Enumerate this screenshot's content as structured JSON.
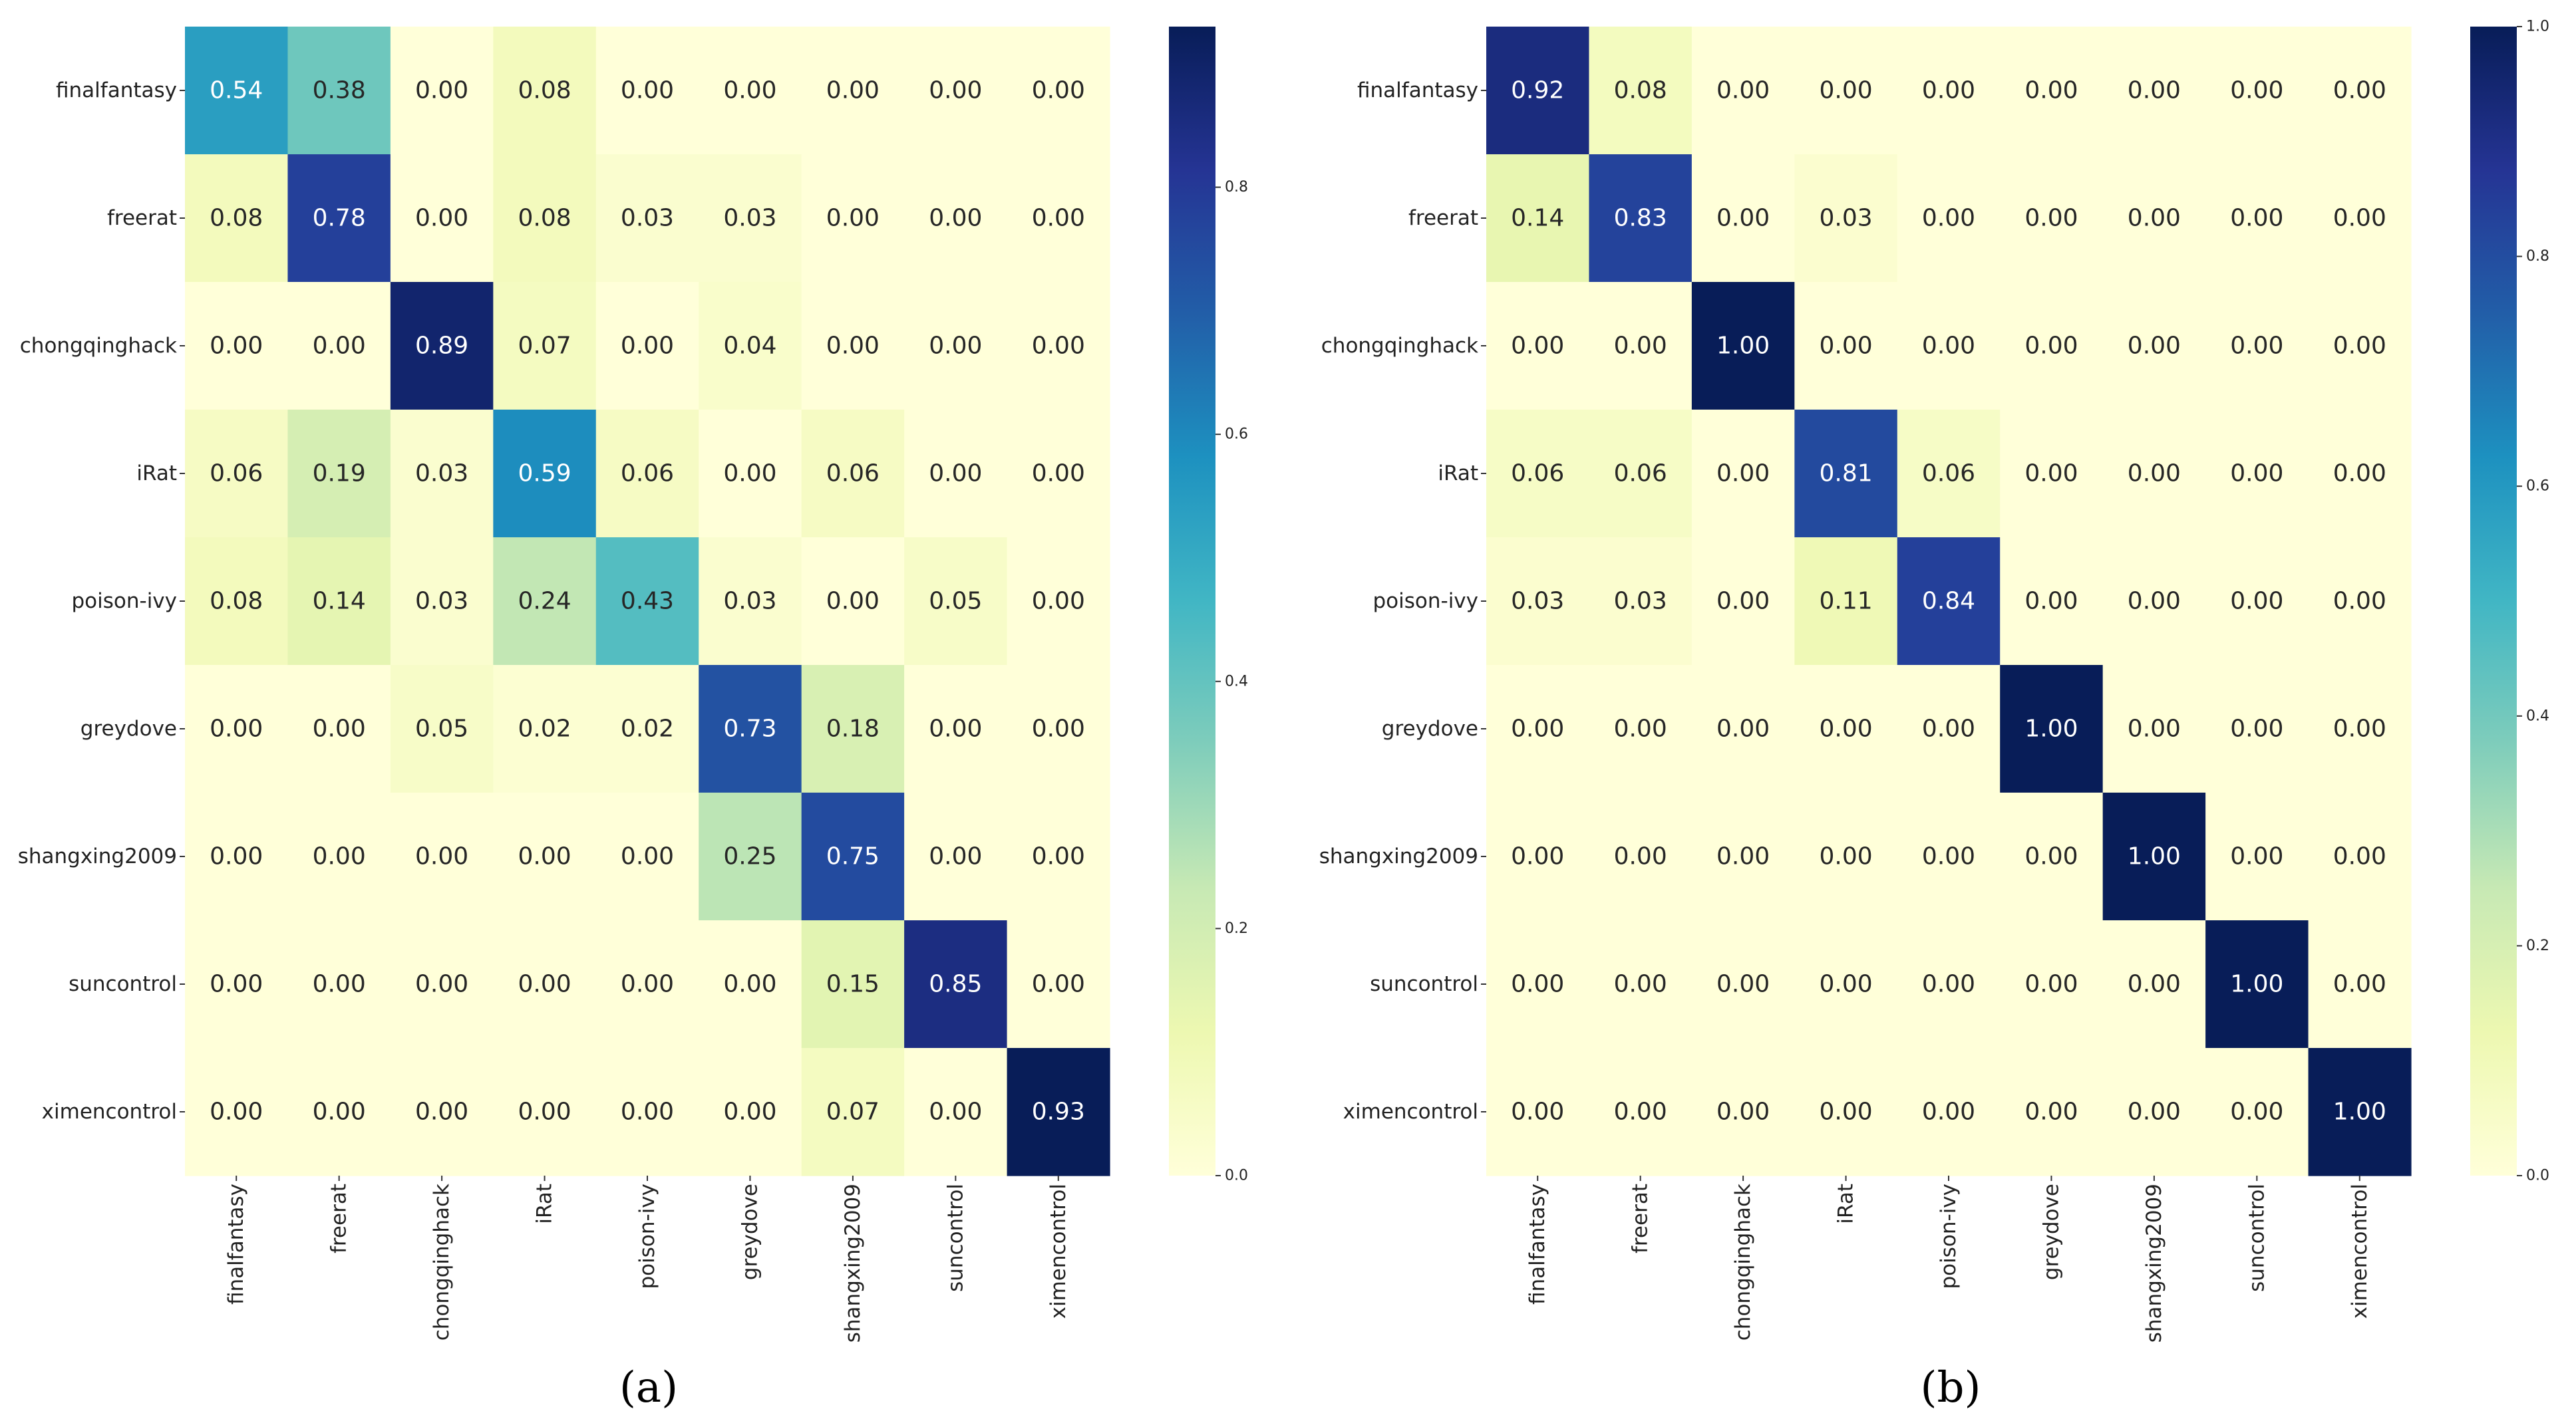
{
  "chart_data": [
    {
      "type": "heatmap",
      "panel_label": "(a)",
      "row_labels": [
        "finalfantasy",
        "freerat",
        "chongqinghack",
        "iRat",
        "poison-ivy",
        "greydove",
        "shangxing2009",
        "suncontrol",
        "ximencontrol"
      ],
      "col_labels": [
        "finalfantasy",
        "freerat",
        "chongqinghack",
        "iRat",
        "poison-ivy",
        "greydove",
        "shangxing2009",
        "suncontrol",
        "ximencontrol"
      ],
      "values": [
        [
          0.54,
          0.38,
          0.0,
          0.08,
          0.0,
          0.0,
          0.0,
          0.0,
          0.0
        ],
        [
          0.08,
          0.78,
          0.0,
          0.08,
          0.03,
          0.03,
          0.0,
          0.0,
          0.0
        ],
        [
          0.0,
          0.0,
          0.89,
          0.07,
          0.0,
          0.04,
          0.0,
          0.0,
          0.0
        ],
        [
          0.06,
          0.19,
          0.03,
          0.59,
          0.06,
          0.0,
          0.06,
          0.0,
          0.0
        ],
        [
          0.08,
          0.14,
          0.03,
          0.24,
          0.43,
          0.03,
          0.0,
          0.05,
          0.0
        ],
        [
          0.0,
          0.0,
          0.05,
          0.02,
          0.02,
          0.73,
          0.18,
          0.0,
          0.0
        ],
        [
          0.0,
          0.0,
          0.0,
          0.0,
          0.0,
          0.25,
          0.75,
          0.0,
          0.0
        ],
        [
          0.0,
          0.0,
          0.0,
          0.0,
          0.0,
          0.0,
          0.15,
          0.85,
          0.0
        ],
        [
          0.0,
          0.0,
          0.0,
          0.0,
          0.0,
          0.0,
          0.07,
          0.0,
          0.93
        ]
      ],
      "colormap": "YlGnBu",
      "color_range": [
        0.0,
        0.93
      ],
      "colorbar_ticks": [
        "0.0",
        "0.2",
        "0.4",
        "0.6",
        "0.8"
      ]
    },
    {
      "type": "heatmap",
      "panel_label": "(b)",
      "row_labels": [
        "finalfantasy",
        "freerat",
        "chongqinghack",
        "iRat",
        "poison-ivy",
        "greydove",
        "shangxing2009",
        "suncontrol",
        "ximencontrol"
      ],
      "col_labels": [
        "finalfantasy",
        "freerat",
        "chongqinghack",
        "iRat",
        "poison-ivy",
        "greydove",
        "shangxing2009",
        "suncontrol",
        "ximencontrol"
      ],
      "values": [
        [
          0.92,
          0.08,
          0.0,
          0.0,
          0.0,
          0.0,
          0.0,
          0.0,
          0.0
        ],
        [
          0.14,
          0.83,
          0.0,
          0.03,
          0.0,
          0.0,
          0.0,
          0.0,
          0.0
        ],
        [
          0.0,
          0.0,
          1.0,
          0.0,
          0.0,
          0.0,
          0.0,
          0.0,
          0.0
        ],
        [
          0.06,
          0.06,
          0.0,
          0.81,
          0.06,
          0.0,
          0.0,
          0.0,
          0.0
        ],
        [
          0.03,
          0.03,
          0.0,
          0.11,
          0.84,
          0.0,
          0.0,
          0.0,
          0.0
        ],
        [
          0.0,
          0.0,
          0.0,
          0.0,
          0.0,
          1.0,
          0.0,
          0.0,
          0.0
        ],
        [
          0.0,
          0.0,
          0.0,
          0.0,
          0.0,
          0.0,
          1.0,
          0.0,
          0.0
        ],
        [
          0.0,
          0.0,
          0.0,
          0.0,
          0.0,
          0.0,
          0.0,
          1.0,
          0.0
        ],
        [
          0.0,
          0.0,
          0.0,
          0.0,
          0.0,
          0.0,
          0.0,
          0.0,
          1.0
        ]
      ],
      "colormap": "YlGnBu",
      "color_range": [
        0.0,
        1.0
      ],
      "colorbar_ticks": [
        "0.0",
        "0.2",
        "0.4",
        "0.6",
        "0.8",
        "1.0"
      ]
    }
  ]
}
